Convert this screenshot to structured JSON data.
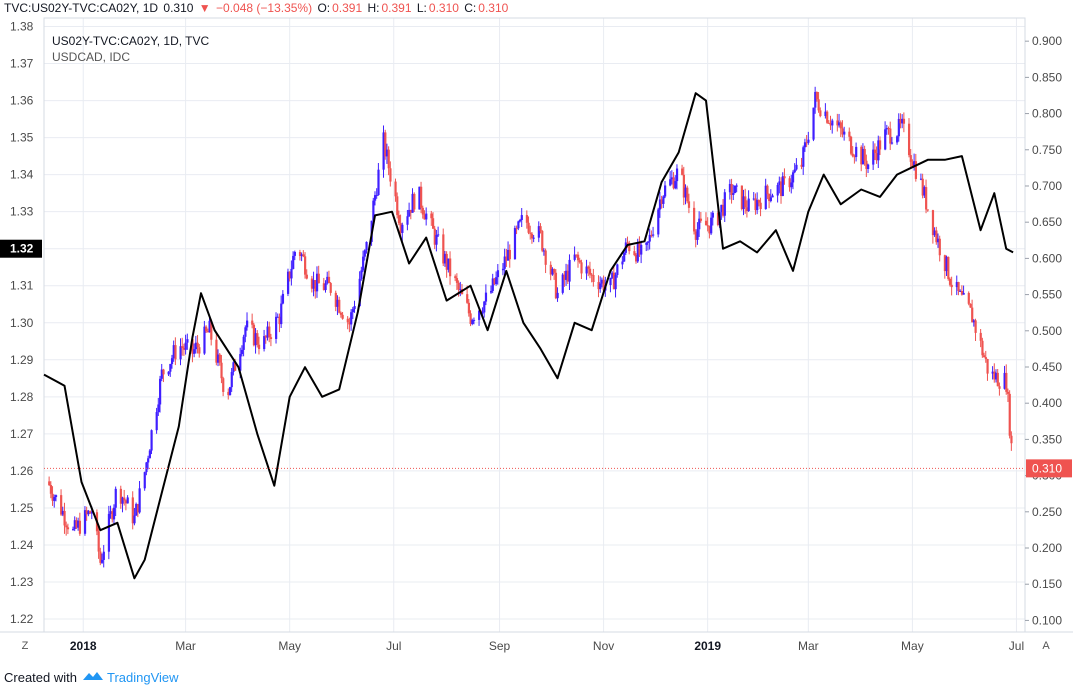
{
  "header": {
    "symbol": "TVC:US02Y-TVC:CA02Y, 1D",
    "last": "0.310",
    "change": "−0.048 (−13.35%)",
    "open_label": "O:",
    "open": "0.391",
    "high_label": "H:",
    "high": "0.391",
    "low_label": "L:",
    "low": "0.310",
    "close_label": "C:",
    "close": "0.310"
  },
  "legend": {
    "series1": "US02Y-TVC:CA02Y, 1D, TVC",
    "series2": "USDCAD, IDC"
  },
  "footer": {
    "created_with": "Created with",
    "brand": "TradingView"
  },
  "buttons": {
    "left": "Z",
    "right": "A"
  },
  "colors": {
    "up": "#3f1fff",
    "down": "#ef5350",
    "line": "#000000",
    "grid": "#e9ecf2",
    "last_price_bg": "#ef5350",
    "left_marker_bg": "#000000"
  },
  "chart_data": {
    "type": "line",
    "x_ticks": [
      "2018",
      "Mar",
      "May",
      "Jul",
      "Sep",
      "Nov",
      "2019",
      "Mar",
      "May",
      "Jul"
    ],
    "x_range": [
      "2017-12-08",
      "2019-07-06"
    ],
    "left_axis": {
      "label": "USDCAD",
      "ticks": [
        "1.38",
        "1.37",
        "1.36",
        "1.35",
        "1.34",
        "1.33",
        "1.32",
        "1.31",
        "1.30",
        "1.29",
        "1.28",
        "1.27",
        "1.26",
        "1.25",
        "1.24",
        "1.23",
        "1.22"
      ],
      "range": [
        1.2165,
        1.3823
      ],
      "highlight": "1.32"
    },
    "right_axis": {
      "label": "US02Y-CA02Y",
      "ticks": [
        "0.900",
        "0.850",
        "0.800",
        "0.750",
        "0.700",
        "0.650",
        "0.600",
        "0.550",
        "0.500",
        "0.450",
        "0.400",
        "0.350",
        "0.300",
        "0.250",
        "0.200",
        "0.150",
        "0.100"
      ],
      "range": [
        0.084,
        0.932
      ],
      "last_value": "0.310"
    },
    "series": [
      {
        "name": "US02Y-TVC:CA02Y, 1D, TVC",
        "kind": "candles",
        "points": [
          [
            "2017-12-10",
            0.292
          ],
          [
            "2017-12-25",
            0.221
          ],
          [
            "2018-01-05",
            0.252
          ],
          [
            "2018-01-10",
            0.181
          ],
          [
            "2018-01-20",
            0.285
          ],
          [
            "2018-01-30",
            0.24
          ],
          [
            "2018-02-05",
            0.305
          ],
          [
            "2018-02-15",
            0.44
          ],
          [
            "2018-02-25",
            0.48
          ],
          [
            "2018-03-05",
            0.47
          ],
          [
            "2018-03-15",
            0.5
          ],
          [
            "2018-03-25",
            0.41
          ],
          [
            "2018-04-05",
            0.505
          ],
          [
            "2018-04-15",
            0.48
          ],
          [
            "2018-04-25",
            0.52
          ],
          [
            "2018-05-05",
            0.62
          ],
          [
            "2018-05-15",
            0.565
          ],
          [
            "2018-05-25",
            0.56
          ],
          [
            "2018-06-05",
            0.51
          ],
          [
            "2018-06-15",
            0.615
          ],
          [
            "2018-06-25",
            0.76
          ],
          [
            "2018-07-05",
            0.65
          ],
          [
            "2018-07-15",
            0.69
          ],
          [
            "2018-07-25",
            0.63
          ],
          [
            "2018-08-05",
            0.57
          ],
          [
            "2018-08-15",
            0.52
          ],
          [
            "2018-08-25",
            0.545
          ],
          [
            "2018-09-05",
            0.6
          ],
          [
            "2018-09-15",
            0.655
          ],
          [
            "2018-09-25",
            0.63
          ],
          [
            "2018-10-05",
            0.55
          ],
          [
            "2018-10-15",
            0.6
          ],
          [
            "2018-10-25",
            0.575
          ],
          [
            "2018-11-05",
            0.56
          ],
          [
            "2018-11-15",
            0.62
          ],
          [
            "2018-11-25",
            0.6
          ],
          [
            "2018-12-05",
            0.69
          ],
          [
            "2018-12-15",
            0.72
          ],
          [
            "2018-12-25",
            0.64
          ],
          [
            "2019-01-05",
            0.65
          ],
          [
            "2019-01-15",
            0.695
          ],
          [
            "2019-01-25",
            0.67
          ],
          [
            "2019-02-05",
            0.69
          ],
          [
            "2019-02-15",
            0.7
          ],
          [
            "2019-02-25",
            0.73
          ],
          [
            "2019-03-05",
            0.82
          ],
          [
            "2019-03-15",
            0.79
          ],
          [
            "2019-03-25",
            0.76
          ],
          [
            "2019-04-05",
            0.73
          ],
          [
            "2019-04-15",
            0.77
          ],
          [
            "2019-04-25",
            0.78
          ],
          [
            "2019-05-05",
            0.71
          ],
          [
            "2019-05-15",
            0.63
          ],
          [
            "2019-05-25",
            0.56
          ],
          [
            "2019-06-05",
            0.52
          ],
          [
            "2019-06-15",
            0.44
          ],
          [
            "2019-06-25",
            0.43
          ],
          [
            "2019-06-29",
            0.31
          ]
        ]
      },
      {
        "name": "USDCAD, IDC",
        "kind": "line",
        "points": [
          [
            "2017-12-08",
            1.286
          ],
          [
            "2017-12-20",
            1.283
          ],
          [
            "2017-12-30",
            1.257
          ],
          [
            "2018-01-10",
            1.244
          ],
          [
            "2018-01-20",
            1.246
          ],
          [
            "2018-01-30",
            1.231
          ],
          [
            "2018-02-05",
            1.236
          ],
          [
            "2018-02-15",
            1.254
          ],
          [
            "2018-02-25",
            1.272
          ],
          [
            "2018-03-05",
            1.296
          ],
          [
            "2018-03-10",
            1.308
          ],
          [
            "2018-03-18",
            1.298
          ],
          [
            "2018-04-01",
            1.288
          ],
          [
            "2018-04-12",
            1.27
          ],
          [
            "2018-04-22",
            1.256
          ],
          [
            "2018-05-01",
            1.28
          ],
          [
            "2018-05-10",
            1.288
          ],
          [
            "2018-05-20",
            1.28
          ],
          [
            "2018-05-30",
            1.282
          ],
          [
            "2018-06-10",
            1.303
          ],
          [
            "2018-06-20",
            1.329
          ],
          [
            "2018-06-30",
            1.33
          ],
          [
            "2018-07-10",
            1.316
          ],
          [
            "2018-07-20",
            1.323
          ],
          [
            "2018-08-01",
            1.306
          ],
          [
            "2018-08-15",
            1.31
          ],
          [
            "2018-08-25",
            1.298
          ],
          [
            "2018-09-05",
            1.314
          ],
          [
            "2018-09-15",
            1.3
          ],
          [
            "2018-09-25",
            1.293
          ],
          [
            "2018-10-05",
            1.285
          ],
          [
            "2018-10-15",
            1.3
          ],
          [
            "2018-10-25",
            1.298
          ],
          [
            "2018-11-05",
            1.314
          ],
          [
            "2018-11-15",
            1.321
          ],
          [
            "2018-11-25",
            1.322
          ],
          [
            "2018-12-05",
            1.338
          ],
          [
            "2018-12-15",
            1.346
          ],
          [
            "2018-12-25",
            1.362
          ],
          [
            "2018-12-31",
            1.36
          ],
          [
            "2019-01-10",
            1.32
          ],
          [
            "2019-01-20",
            1.322
          ],
          [
            "2019-01-30",
            1.319
          ],
          [
            "2019-02-10",
            1.325
          ],
          [
            "2019-02-20",
            1.314
          ],
          [
            "2019-03-01",
            1.33
          ],
          [
            "2019-03-10",
            1.34
          ],
          [
            "2019-03-20",
            1.332
          ],
          [
            "2019-04-01",
            1.336
          ],
          [
            "2019-04-12",
            1.334
          ],
          [
            "2019-04-22",
            1.34
          ],
          [
            "2019-05-01",
            1.342
          ],
          [
            "2019-05-10",
            1.344
          ],
          [
            "2019-05-20",
            1.344
          ],
          [
            "2019-05-30",
            1.345
          ],
          [
            "2019-06-10",
            1.325
          ],
          [
            "2019-06-18",
            1.335
          ],
          [
            "2019-06-25",
            1.32
          ],
          [
            "2019-06-29",
            1.319
          ]
        ]
      }
    ]
  }
}
